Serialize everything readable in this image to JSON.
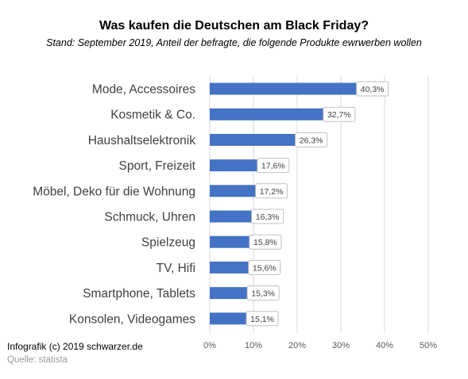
{
  "header": {
    "title": "Was kaufen die Deutschen am Black Friday?",
    "subtitle": "Stand: September 2019, Anteil der befragte, die folgende Produkte ewrwerben wollen"
  },
  "footer": {
    "credit": "Infografik (c) 2019 schwarzer.de",
    "source": "Quelle: statista"
  },
  "chart_data": {
    "type": "bar",
    "orientation": "horizontal",
    "categories": [
      "Mode, Accessoires",
      "Kosmetik & Co.",
      "Haushaltselektronik",
      "Sport, Freizeit",
      "Möbel, Deko für die Wohnung",
      "Schmuck, Uhren",
      "Spielzeug",
      "TV, Hifi",
      "Smartphone, Tablets",
      "Konsolen, Videogames"
    ],
    "values": [
      40.3,
      32.7,
      26.3,
      17.6,
      17.2,
      16.3,
      15.8,
      15.6,
      15.3,
      15.1
    ],
    "data_labels": [
      "40,3%",
      "32,7%",
      "26,3%",
      "17,6%",
      "17,2%",
      "16,3%",
      "15,8%",
      "15,6%",
      "15,3%",
      "15,1%"
    ],
    "x_ticks": [
      "0%",
      "10%",
      "20%",
      "30%",
      "40%",
      "50%"
    ],
    "xlim": [
      0,
      50
    ],
    "grid": true,
    "bar_color": "#4472c4"
  }
}
